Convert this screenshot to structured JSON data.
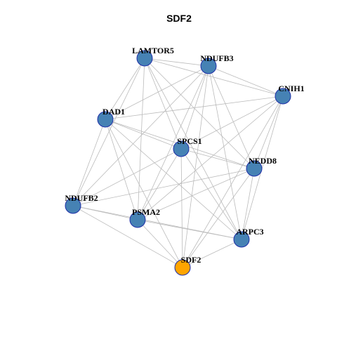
{
  "title": "SDF2",
  "nodes": [
    {
      "label": "LAMTOR5"
    },
    {
      "label": "NDUFB3"
    },
    {
      "label": "CNIH1"
    },
    {
      "label": "DAD1"
    },
    {
      "label": "SPCS1"
    },
    {
      "label": "NEDD8"
    },
    {
      "label": "NDUFB2"
    },
    {
      "label": "PSMA2"
    },
    {
      "label": "ARPC3"
    },
    {
      "label": "SDF2"
    }
  ]
}
